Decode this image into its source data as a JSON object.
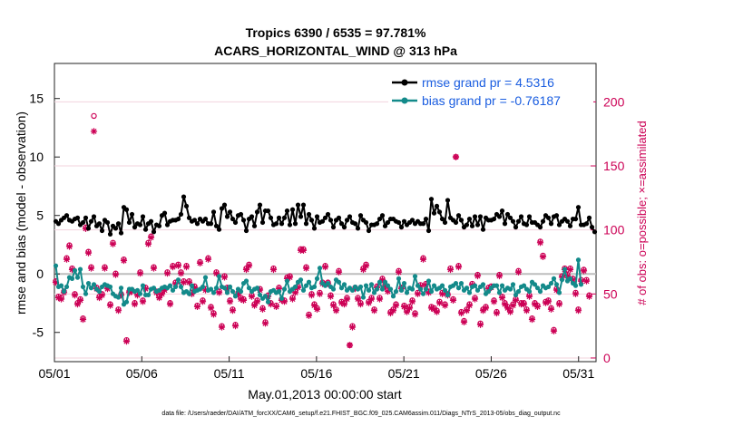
{
  "chart_data": {
    "type": "line",
    "title_line1": "Tropics 6390 / 6535 = 97.781%",
    "title_line2": "ACARS_HORIZONTAL_WIND @ 313 hPa",
    "xlabel": "May.01,2013 00:00:00 start",
    "ylabel": "rmse and bias (model - observation)",
    "ylabel_right": "# of obs: o=possible; ×=assimilated",
    "x_ticks": [
      "05/01",
      "05/06",
      "05/11",
      "05/16",
      "05/21",
      "05/26",
      "05/31"
    ],
    "y_ticks": [
      "-5",
      "0",
      "5",
      "10",
      "15"
    ],
    "y_right_ticks": [
      "0",
      "50",
      "100",
      "150",
      "200"
    ],
    "ylim": [
      -7.5,
      18
    ],
    "ylim_right": [
      -2.86,
      230
    ],
    "xlim": [
      1.0,
      32.0
    ],
    "legend": [
      {
        "label": "rmse grand pr = 4.5316",
        "color": "#000000"
      },
      {
        "label": "bias grand pr = -0.76187",
        "color": "#138a8a"
      }
    ],
    "series": [
      {
        "name": "rmse",
        "color": "#000000",
        "values": [
          4.5,
          4.3,
          4.6,
          4.8,
          5.0,
          4.6,
          4.5,
          4.7,
          4.8,
          4.2,
          4.4,
          4.8,
          3.9,
          4.5,
          4.9,
          4.1,
          4.3,
          3.7,
          4.6,
          4.4,
          3.4,
          4.1,
          3.9,
          4.3,
          3.5,
          5.7,
          5.5,
          4.4,
          5.1,
          4.0,
          4.3,
          4.2,
          4.9,
          3.8,
          4.3,
          4.5,
          3.6,
          4.2,
          4.1,
          5.0,
          5.2,
          4.2,
          4.5,
          4.6,
          4.6,
          4.7,
          5.1,
          6.6,
          5.8,
          4.8,
          4.5,
          4.6,
          4.3,
          4.7,
          4.5,
          4.7,
          4.3,
          4.3,
          5.3,
          4.1,
          3.8,
          5.6,
          5.9,
          4.9,
          5.3,
          4.7,
          4.4,
          5.0,
          5.1,
          4.6,
          3.7,
          4.7,
          4.9,
          4.1,
          5.3,
          5.9,
          4.4,
          5.4,
          5.4,
          4.8,
          4.2,
          4.3,
          4.8,
          4.3,
          4.8,
          5.4,
          4.2,
          5.5,
          4.3,
          5.9,
          4.9,
          5.9,
          4.3,
          5.1,
          4.6,
          3.9,
          4.9,
          4.4,
          4.5,
          4.8,
          5.1,
          4.6,
          4.0,
          4.6,
          4.8,
          4.3,
          4.0,
          4.6,
          4.9,
          4.4,
          4.3,
          3.9,
          5.0,
          4.6,
          4.4,
          3.7,
          4.2,
          4.2,
          4.3,
          4.7,
          5.0,
          4.1,
          4.4,
          4.7,
          4.7,
          4.5,
          4.4,
          4.0,
          4.5,
          4.2,
          4.4,
          4.6,
          4.3,
          4.5,
          4.3,
          4.3,
          4.7,
          3.7,
          6.4,
          5.2,
          5.8,
          5.3,
          4.7,
          4.4,
          6.3,
          4.8,
          4.6,
          4.4,
          5.0,
          4.6,
          4.0,
          4.2,
          4.7,
          4.1,
          4.9,
          4.2,
          4.9,
          3.8,
          4.8,
          4.6,
          4.6,
          4.7,
          5.1,
          4.9,
          5.4,
          4.3,
          5.1,
          4.8,
          4.5,
          4.0,
          4.5,
          4.9,
          4.3,
          4.2,
          4.9,
          4.4,
          4.4,
          4.2,
          4.0,
          4.5,
          5.0,
          4.8,
          4.3,
          4.9,
          5.0,
          4.2,
          4.5,
          4.7,
          4.5,
          4.1,
          4.7,
          4.7,
          5.7,
          4.2,
          4.2,
          4.3,
          4.8,
          4.0,
          3.6
        ]
      },
      {
        "name": "bias",
        "color": "#138a8a",
        "values": [
          0.7,
          -1.1,
          -1.0,
          -1.5,
          -1.1,
          -0.3,
          -0.4,
          0.3,
          -0.3,
          0.4,
          -1.1,
          -1.7,
          -0.8,
          -1.2,
          -0.9,
          -1.3,
          -1.5,
          -1.1,
          -0.9,
          -1.0,
          -1.1,
          -1.7,
          -1.9,
          -2.0,
          -1.2,
          -2.6,
          -2.4,
          -1.3,
          -1.3,
          -1.5,
          -1.4,
          -1.7,
          -1.0,
          -1.8,
          -1.8,
          -1.3,
          -1.2,
          -1.5,
          -1.4,
          -1.2,
          -1.1,
          -1.2,
          -1.0,
          -1.4,
          -1.1,
          -0.5,
          -1.1,
          -1.6,
          -1.5,
          -1.7,
          -1.0,
          -1.5,
          -1.4,
          -1.3,
          -1.1,
          -0.3,
          -1.4,
          -1.3,
          -1.6,
          -1.2,
          -0.2,
          -1.1,
          -1.2,
          -1.6,
          -1.1,
          -1.5,
          -1.9,
          -1.3,
          -1.5,
          -0.8,
          -0.6,
          -1.2,
          -1.5,
          -1.3,
          -1.2,
          -1.8,
          -2.1,
          -1.9,
          -2.4,
          -1.5,
          -1.4,
          -1.6,
          -1.5,
          -2.1,
          -1.3,
          -0.6,
          -1.5,
          -1.3,
          -1.1,
          -0.7,
          -0.5,
          -1.4,
          -1.0,
          -0.7,
          -1.2,
          -1.1,
          -0.4,
          0.5,
          -0.8,
          -1.0,
          -0.8,
          -1.1,
          -1.3,
          -0.5,
          -0.7,
          -1.2,
          -0.9,
          -1.4,
          -1.2,
          -1.4,
          -1.1,
          -1.3,
          -1.1,
          -2.0,
          -1.0,
          -1.4,
          -0.9,
          -1.6,
          -1.3,
          -0.7,
          -1.3,
          -0.7,
          -1.0,
          -1.3,
          -1.9,
          -1.5,
          -0.4,
          -1.4,
          -0.8,
          -1.6,
          -1.2,
          -1.3,
          -0.2,
          -1.0,
          -1.3,
          -1.7,
          -1.3,
          -0.6,
          -1.5,
          -1.0,
          -1.3,
          -1.2,
          -1.0,
          -1.4,
          -1.8,
          -1.1,
          -1.0,
          -0.8,
          -1.2,
          -0.8,
          -1.4,
          -1.2,
          -1.6,
          -1.1,
          -1.0,
          -1.4,
          -1.1,
          -0.9,
          -1.7,
          -1.5,
          -1.2,
          -1.0,
          -1.0,
          -1.6,
          -1.0,
          -1.4,
          -1.2,
          -1.3,
          -0.9,
          -1.8,
          -1.5,
          -1.1,
          -1.0,
          -1.3,
          -1.5,
          -0.7,
          -0.9,
          -1.2,
          -1.5,
          -1.0,
          -1.2,
          -1.1,
          -0.8,
          -0.4,
          -0.9,
          -1.6,
          -0.5,
          0.4,
          -0.6,
          -0.4,
          -0.8,
          -1.0,
          1.2,
          -0.9
        ]
      },
      {
        "name": "possible",
        "color": "#cc0055",
        "marker": "o",
        "values": [
          60,
          48,
          47,
          52,
          78,
          88,
          70,
          50,
          43,
          46,
          31,
          102,
          83,
          71,
          189,
          55,
          48,
          50,
          71,
          55,
          42,
          90,
          66,
          38,
          50,
          77,
          14,
          52,
          53,
          43,
          50,
          67,
          45,
          55,
          90,
          95,
          71,
          52,
          48,
          51,
          54,
          67,
          43,
          72,
          59,
          73,
          67,
          60,
          72,
          60,
          51,
          56,
          41,
          75,
          45,
          54,
          78,
          40,
          35,
          67,
          52,
          25,
          64,
          55,
          45,
          38,
          26,
          51,
          47,
          46,
          70,
          73,
          49,
          42,
          45,
          54,
          39,
          28,
          49,
          43,
          70,
          41,
          55,
          46,
          45,
          63,
          64,
          47,
          52,
          56,
          85,
          85,
          71,
          34,
          50,
          42,
          39,
          51,
          59,
          72,
          59,
          49,
          42,
          38,
          68,
          44,
          43,
          47,
          10,
          25,
          55,
          47,
          43,
          70,
          73,
          44,
          47,
          38,
          56,
          47,
          62,
          57,
          53,
          36,
          38,
          42,
          68,
          55,
          41,
          37,
          40,
          45,
          35,
          51,
          57,
          78,
          58,
          52,
          40,
          39,
          37,
          44,
          51,
          42,
          50,
          70,
          46,
          157,
          72,
          36,
          29,
          38,
          42,
          58,
          47,
          65,
          27,
          38,
          40,
          55,
          56,
          45,
          36,
          65,
          48,
          43,
          40,
          37,
          42,
          46,
          68,
          43,
          43,
          38,
          49,
          31,
          43,
          41,
          91,
          80,
          44,
          45,
          39,
          22,
          54,
          43,
          64,
          70,
          65,
          70,
          62,
          51,
          38,
          61,
          69,
          61,
          49
        ]
      },
      {
        "name": "assimilated",
        "color": "#cc0055",
        "marker": "*",
        "values": [
          59,
          47,
          46,
          51,
          77,
          87,
          69,
          49,
          42,
          45,
          30,
          101,
          82,
          70,
          177,
          54,
          47,
          49,
          70,
          54,
          41,
          89,
          65,
          37,
          49,
          76,
          13,
          51,
          52,
          42,
          49,
          66,
          44,
          54,
          89,
          94,
          70,
          51,
          47,
          50,
          53,
          66,
          42,
          71,
          58,
          72,
          66,
          59,
          71,
          59,
          50,
          55,
          40,
          74,
          44,
          53,
          77,
          39,
          34,
          66,
          51,
          24,
          63,
          54,
          44,
          37,
          25,
          50,
          46,
          45,
          69,
          72,
          48,
          41,
          44,
          53,
          38,
          27,
          48,
          42,
          69,
          40,
          54,
          45,
          44,
          62,
          63,
          46,
          51,
          55,
          84,
          84,
          70,
          33,
          49,
          41,
          38,
          50,
          58,
          71,
          58,
          48,
          41,
          37,
          67,
          43,
          42,
          46,
          10,
          24,
          54,
          46,
          42,
          69,
          72,
          43,
          46,
          37,
          55,
          46,
          61,
          56,
          52,
          35,
          37,
          41,
          67,
          54,
          40,
          36,
          39,
          44,
          34,
          50,
          56,
          77,
          57,
          51,
          39,
          38,
          36,
          43,
          50,
          41,
          49,
          69,
          45,
          157,
          71,
          35,
          28,
          37,
          41,
          57,
          46,
          64,
          26,
          37,
          39,
          54,
          55,
          44,
          35,
          64,
          47,
          42,
          39,
          36,
          41,
          45,
          67,
          42,
          42,
          37,
          48,
          30,
          42,
          40,
          90,
          79,
          43,
          44,
          38,
          21,
          53,
          42,
          63,
          69,
          64,
          69,
          61,
          50,
          37,
          60,
          68,
          60,
          48
        ]
      }
    ],
    "footer": "data file: /Users/raeder/DAI/ATM_forcXX/CAM6_setup/f.e21.FHIST_BGC.f09_025.CAM6assim.011/Diags_NTrS_2013-05/obs_diag_output.nc"
  }
}
